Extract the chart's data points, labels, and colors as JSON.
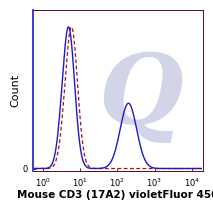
{
  "title": "",
  "xlabel": "Mouse CD3 (17A2) violetFluor 450",
  "ylabel": "Count",
  "xlim": [
    0.55,
    20000
  ],
  "ylim": [
    -0.02,
    1.12
  ],
  "background_color": "#ffffff",
  "watermark_color": "#d2d5e8",
  "solid_line_color": "#1a1acc",
  "dashed_line_color": "#aa1111",
  "xlabel_fontsize": 7.5,
  "ylabel_fontsize": 8,
  "tick_fontsize": 6,
  "spine_color": "#5a0a1a",
  "left_spine_color": "#1a1acc"
}
